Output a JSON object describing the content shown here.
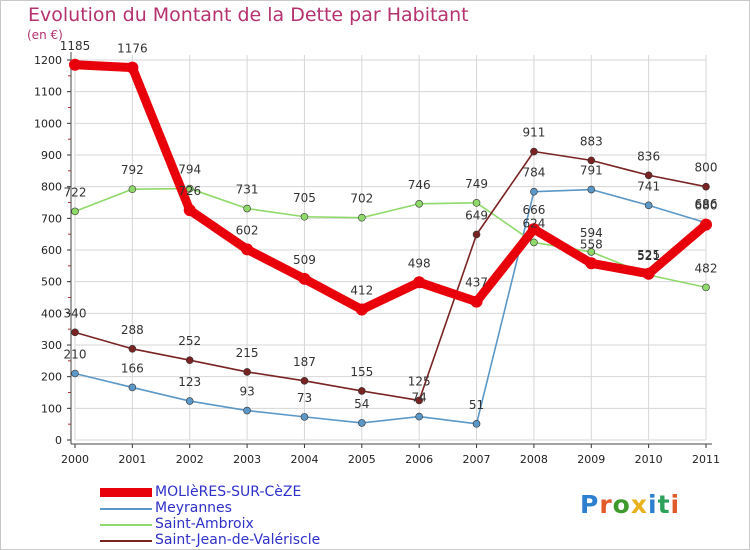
{
  "title": "Evolution du Montant de la Dette par Habitant",
  "unit_label": "(en €)",
  "logo": {
    "text": "Proxiti",
    "letter_colors": [
      "#2d7fd0",
      "#e25b2b",
      "#3f9a2e",
      "#e8b21d",
      "#2d7fd0",
      "#2fa15b",
      "#e25b2b"
    ]
  },
  "chart_data": {
    "type": "line",
    "x": [
      "2000",
      "2001",
      "2002",
      "2003",
      "2004",
      "2005",
      "2006",
      "2007",
      "2008",
      "2009",
      "2010",
      "2011"
    ],
    "ylim": [
      0,
      1200
    ],
    "yticks": [
      "0",
      "100",
      "200",
      "300",
      "400",
      "500",
      "600",
      "700",
      "800",
      "900",
      "1000",
      "1100",
      "1200"
    ],
    "grid": true,
    "legend_position": "bottom-left",
    "series": [
      {
        "name": "MOLIèRES-SUR-CèZE",
        "color": "#e8000b",
        "values": [
          1185,
          1176,
          726,
          602,
          509,
          412,
          498,
          437,
          666,
          558,
          525,
          680
        ],
        "labels": [
          "1185",
          "1176",
          "726",
          "602",
          "509",
          "412",
          "498",
          "437",
          "666",
          "558",
          "525",
          "680"
        ]
      },
      {
        "name": "Meyrannes",
        "color": "#5b97c7",
        "values": [
          210,
          166,
          123,
          93,
          73,
          54,
          74,
          51,
          784,
          791,
          741,
          686
        ],
        "labels": [
          "210",
          "166",
          "123",
          "93",
          "73",
          "54",
          "74",
          "51",
          "784",
          "791",
          "741",
          "686"
        ]
      },
      {
        "name": "Saint-Ambroix",
        "color": "#8fd96a",
        "values": [
          722,
          792,
          794,
          731,
          705,
          702,
          746,
          749,
          624,
          594,
          521,
          482
        ],
        "labels": [
          "722",
          "792",
          "794",
          "731",
          "705",
          "702",
          "746",
          "749",
          "624",
          "594",
          "521",
          "482"
        ]
      },
      {
        "name": "Saint-Jean-de-Valériscle",
        "color": "#7a2323",
        "values": [
          340,
          288,
          252,
          215,
          187,
          155,
          125,
          649,
          911,
          883,
          836,
          800
        ],
        "labels": [
          "340",
          "288",
          "252",
          "215",
          "187",
          "155",
          "125",
          "649",
          "911",
          "883",
          "836",
          "800"
        ]
      }
    ]
  }
}
